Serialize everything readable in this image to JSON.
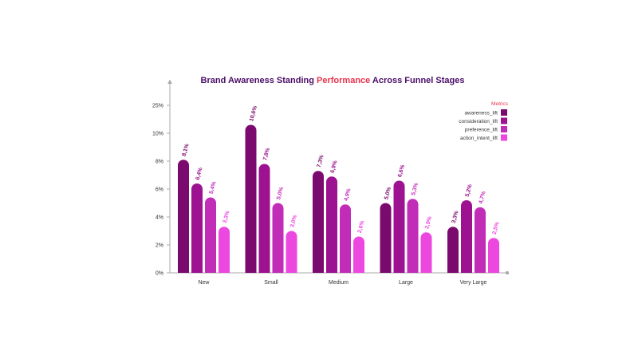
{
  "chart_data": {
    "type": "bar",
    "title_parts": [
      {
        "text": "Brand Awareness Standing ",
        "color": "#4a0d67"
      },
      {
        "text": "Performance",
        "color": "#e8344e"
      },
      {
        "text": " Across Funnel Stages",
        "color": "#4a0d67"
      }
    ],
    "categories": [
      "New",
      "Small",
      "Medium",
      "Large",
      "Very Large"
    ],
    "y_ticks": [
      "0%",
      "2%",
      "4%",
      "6%",
      "8%",
      "10%",
      "25%"
    ],
    "legend_title": "Metrics",
    "series": [
      {
        "name": "awareness_lift",
        "color": "#7a0a6e",
        "values": [
          8.1,
          10.6,
          7.3,
          5.0,
          3.3
        ],
        "labels": [
          "8,1%",
          "10,6%",
          "7,3%",
          "5,0%",
          "3,3%"
        ]
      },
      {
        "name": "consideration_lift",
        "color": "#9c1290",
        "values": [
          6.4,
          7.8,
          6.9,
          6.6,
          5.2
        ],
        "labels": [
          "6,4%",
          "7,8%",
          "6,9%",
          "6,6%",
          "5,2%"
        ]
      },
      {
        "name": "preference_lift",
        "color": "#c22db8",
        "values": [
          5.4,
          5.0,
          4.9,
          5.3,
          4.7
        ],
        "labels": [
          "5,4%",
          "5,0%",
          "4,9%",
          "5,3%",
          "4,7%"
        ]
      },
      {
        "name": "action_intent_lift",
        "color": "#ec48e0",
        "values": [
          3.3,
          3.0,
          2.6,
          2.9,
          2.5
        ],
        "labels": [
          "3,3%",
          "3,0%",
          "2,6%",
          "2,9%",
          "2,5%"
        ]
      }
    ],
    "colors": {
      "legend_title": "#e8344e",
      "axis": "#aaaaaa"
    }
  }
}
